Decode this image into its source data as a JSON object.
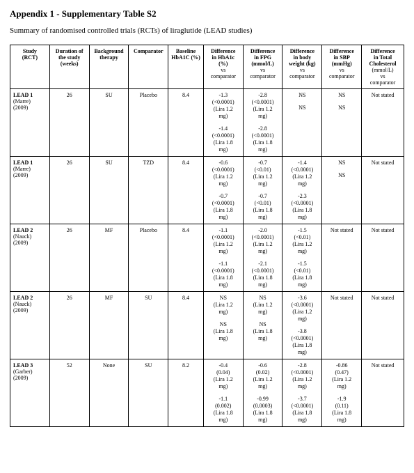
{
  "title": "Appendix 1 - Supplementary Table S2",
  "subtitle": "Summary of randomised controlled trials (RCTs) of liraglutide (LEAD studies)",
  "headers": {
    "study": "Study\n(RCT)",
    "duration": "Duration of\nthe study\n(weeks)",
    "background": "Background\ntherapy",
    "comparator": "Comparator",
    "baseline": "Baseline\nHbA1C (%)",
    "diff_hba1c": "Difference\nin HbA1c\n(%)\nvs\ncomparator",
    "diff_fpg": "Difference\nin FPG\n(mmol/L)\nvs\ncomparator",
    "diff_weight": "Difference\nin body\nweight (kg)\nvs\ncomparator",
    "diff_sbp": "Difference\nin SBP\n(mmHg)\nvs\ncomparator",
    "diff_chol": "Difference\nin Total\nCholesterol\n(mmol/L)\nvs\ncomparator"
  },
  "rows": [
    {
      "study_name": "LEAD 1",
      "study_ref": "(Marre)\n(2009)",
      "duration": "26",
      "background": "SU",
      "comparator": "Placebo",
      "baseline": "8.4",
      "diff_hba1c": [
        "-1.3\n(<0.0001)\n(Lira 1.2\nmg)",
        "-1.4\n(<0.0001)\n(Lira 1.8\nmg)"
      ],
      "diff_fpg": [
        "-2.8\n(<0.0001)\n(Lira 1.2\nmg)",
        "-2.8\n(<0.0001)\n(Lira 1.8\nmg)"
      ],
      "diff_weight": [
        "NS",
        "NS"
      ],
      "diff_sbp": [
        "NS",
        "NS"
      ],
      "diff_chol": [
        "Not stated"
      ]
    },
    {
      "study_name": "LEAD 1",
      "study_ref": "(Marre)\n(2009)",
      "duration": "26",
      "background": "SU",
      "comparator": "TZD",
      "baseline": "8.4",
      "diff_hba1c": [
        "-0.6\n(<0.0001)\n(Lira 1.2\nmg)",
        "-0.7\n(<0.0001)\n(Lira 1.8\nmg)"
      ],
      "diff_fpg": [
        "-0.7\n(<0.01)\n(Lira 1.2\nmg)",
        "-0.7\n(<0.01)\n(Lira 1.8\nmg)"
      ],
      "diff_weight": [
        "-1.4\n(<0.0001)\n(Lira 1.2\nmg)",
        "-2.3\n(<0.0001)\n(Lira 1.8\nmg)"
      ],
      "diff_sbp": [
        "NS",
        "NS"
      ],
      "diff_chol": [
        "Not stated"
      ]
    },
    {
      "study_name": "LEAD 2",
      "study_ref": "(Nauck)\n(2009)",
      "duration": "26",
      "background": "MF",
      "comparator": "Placebo",
      "baseline": "8.4",
      "diff_hba1c": [
        "-1.1\n(<0.0001)\n(Lira 1.2\nmg)",
        "-1.1\n(<0.0001)\n(Lira 1.8\nmg)"
      ],
      "diff_fpg": [
        "-2.0\n(<0.0001)\n(Lira 1.2\nmg)",
        "-2.1\n(<0.0001)\n(Lira 1.8\nmg)"
      ],
      "diff_weight": [
        "-1.5\n(<0.01)\n(Lira 1.2\nmg)",
        "-1.5\n(<0.01)\n(Lira 1.8\nmg)"
      ],
      "diff_sbp": [
        "Not stated"
      ],
      "diff_chol": [
        "Not stated"
      ]
    },
    {
      "study_name": "LEAD 2",
      "study_ref": "(Nauck)\n(2009)",
      "duration": "26",
      "background": "MF",
      "comparator": "SU",
      "baseline": "8.4",
      "diff_hba1c": [
        "NS\n(Lira 1.2\nmg)",
        "NS\n(Lira 1.8\nmg)"
      ],
      "diff_fpg": [
        "NS\n(Lira 1.2\nmg)",
        "NS\n(Lira 1.8\nmg)"
      ],
      "diff_weight": [
        "-3.6\n(<0.0001)\n(Lira 1.2\nmg)",
        "-3.8\n(<0.0001)\n(Lira 1.8\nmg)"
      ],
      "diff_sbp": [
        "Not stated"
      ],
      "diff_chol": [
        "Not stated"
      ]
    },
    {
      "study_name": "LEAD 3",
      "study_ref": "(Garber)\n(2009)",
      "duration": "52",
      "background": "None",
      "comparator": "SU",
      "baseline": "8.2",
      "diff_hba1c": [
        "-0.4\n(0.04)\n(Lira 1.2\nmg)",
        "-1.1\n(0.002)\n(Lira 1.8\nmg)"
      ],
      "diff_fpg": [
        "-0.6\n(0.02)\n(Lira 1.2\nmg)",
        "-0.99\n(0.0003)\n(Lira 1.8\nmg)"
      ],
      "diff_weight": [
        "-2.8\n(<0.0001)\n(Lira 1.2\nmg)",
        "-3.7\n(<0.0001)\n(Lira 1.8\nmg)"
      ],
      "diff_sbp": [
        "-0.86\n(0.47)\n(Lira 1.2\nmg)",
        "-1.9\n(0.11)\n(Lira 1.8\nmg)"
      ],
      "diff_chol": [
        "Not stated"
      ]
    }
  ],
  "colwidths": [
    "56",
    "56",
    "56",
    "56",
    "50",
    "56",
    "56",
    "56",
    "56",
    "60"
  ]
}
